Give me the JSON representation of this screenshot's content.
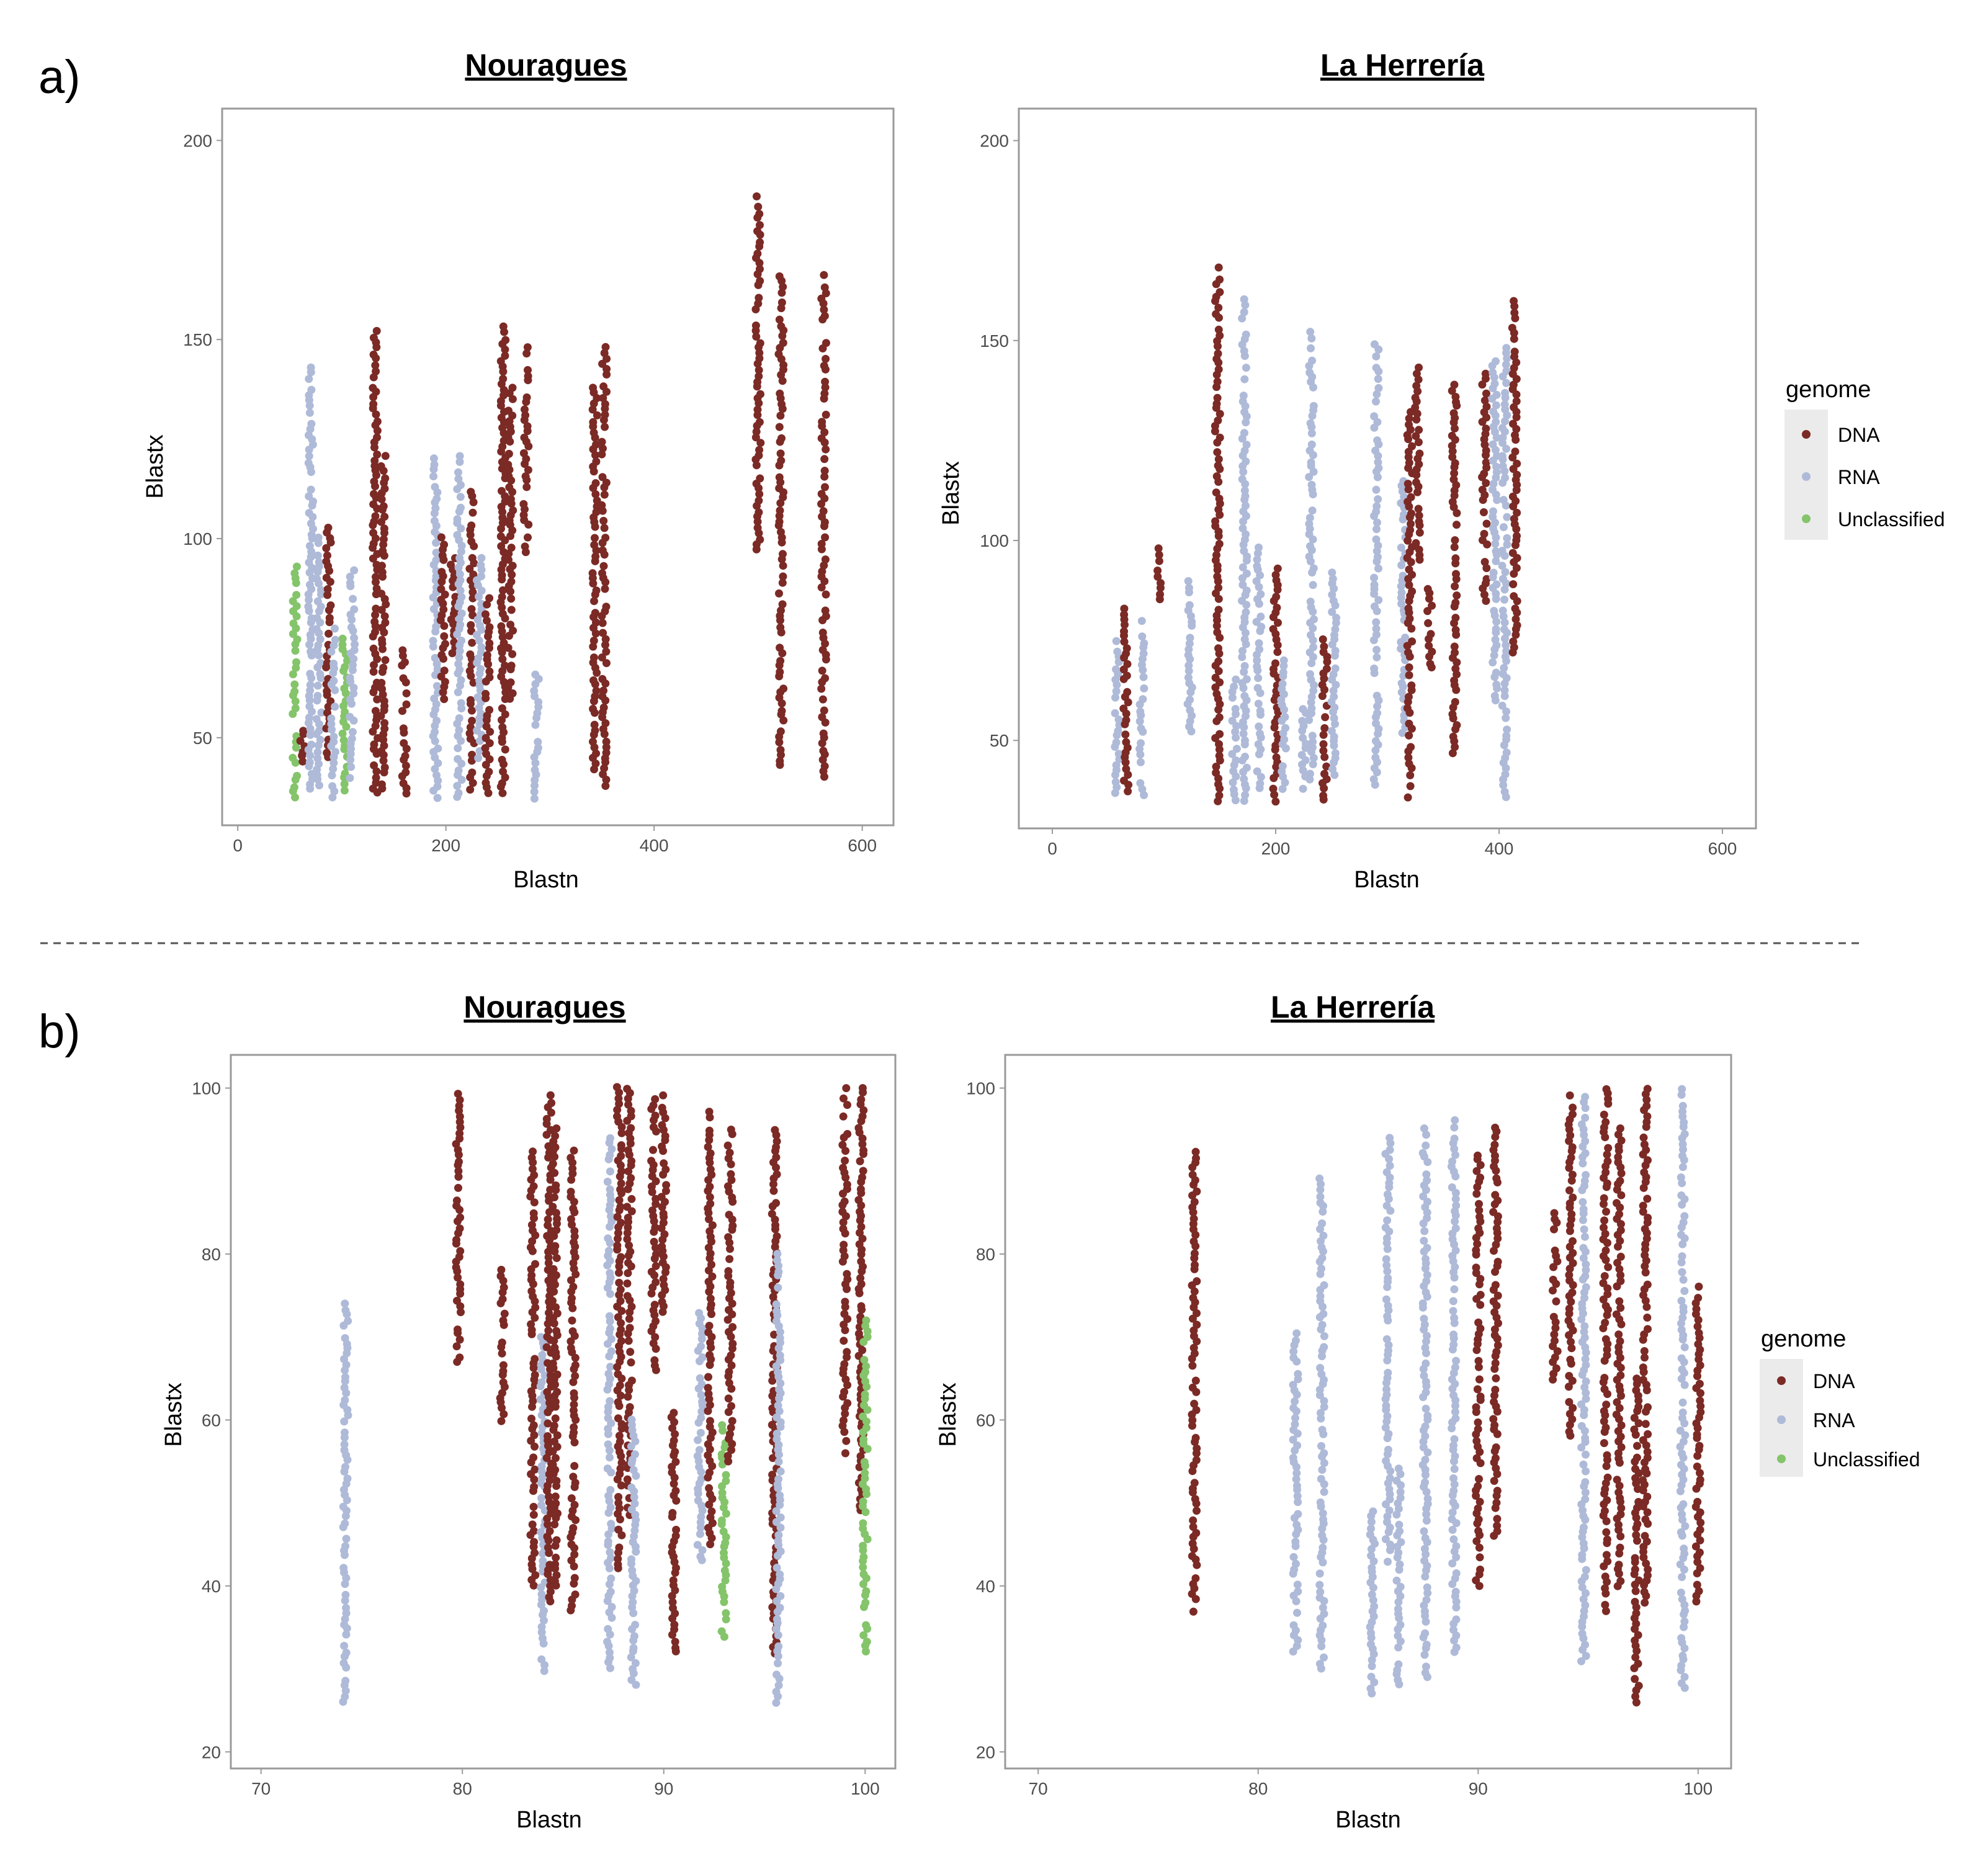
{
  "panels": [
    {
      "label": "a)"
    },
    {
      "label": "b)"
    }
  ],
  "colors": {
    "DNA": "#7b2a25",
    "RNA": "#aebad8",
    "Unclassified": "#84c46a",
    "frame": "#9a9a9a",
    "divider": "#555555"
  },
  "legends": [
    {
      "title": "genome",
      "items": [
        "DNA",
        "RNA",
        "Unclassified"
      ]
    },
    {
      "title": "genome",
      "items": [
        "DNA",
        "RNA",
        "Unclassified"
      ]
    }
  ],
  "chart_data": [
    {
      "type": "scatter",
      "panel": "a)",
      "title": "Nouragues",
      "xlabel": "Blastn",
      "ylabel": "Blastx",
      "xlim": [
        -15,
        630
      ],
      "ylim": [
        28,
        208
      ],
      "xticks": [
        0,
        200,
        400,
        600
      ],
      "yticks": [
        50,
        100,
        150,
        200
      ],
      "columns": [
        {
          "x": 55,
          "genome": "Unclassified",
          "y": [
            35,
            93
          ]
        },
        {
          "x": 62,
          "genome": "DNA",
          "y": [
            44,
            52
          ]
        },
        {
          "x": 70,
          "genome": "RNA",
          "y": [
            37,
            143
          ]
        },
        {
          "x": 78,
          "genome": "RNA",
          "y": [
            38,
            100
          ]
        },
        {
          "x": 87,
          "genome": "DNA",
          "y": [
            45,
            103
          ]
        },
        {
          "x": 92,
          "genome": "RNA",
          "y": [
            35,
            80
          ]
        },
        {
          "x": 103,
          "genome": "Unclassified",
          "y": [
            37,
            75
          ]
        },
        {
          "x": 110,
          "genome": "RNA",
          "y": [
            40,
            92
          ]
        },
        {
          "x": 132,
          "genome": "DNA",
          "y": [
            36,
            152
          ]
        },
        {
          "x": 140,
          "genome": "DNA",
          "y": [
            37,
            121
          ]
        },
        {
          "x": 160,
          "genome": "DNA",
          "y": [
            36,
            72
          ]
        },
        {
          "x": 190,
          "genome": "RNA",
          "y": [
            35,
            120
          ]
        },
        {
          "x": 197,
          "genome": "DNA",
          "y": [
            60,
            100
          ]
        },
        {
          "x": 207,
          "genome": "DNA",
          "y": [
            70,
            95
          ]
        },
        {
          "x": 213,
          "genome": "RNA",
          "y": [
            35,
            122
          ]
        },
        {
          "x": 225,
          "genome": "DNA",
          "y": [
            37,
            112
          ]
        },
        {
          "x": 232,
          "genome": "RNA",
          "y": [
            45,
            95
          ]
        },
        {
          "x": 240,
          "genome": "DNA",
          "y": [
            36,
            85
          ]
        },
        {
          "x": 255,
          "genome": "DNA",
          "y": [
            36,
            153
          ]
        },
        {
          "x": 262,
          "genome": "DNA",
          "y": [
            60,
            138
          ]
        },
        {
          "x": 277,
          "genome": "DNA",
          "y": [
            95,
            148
          ]
        },
        {
          "x": 287,
          "genome": "RNA",
          "y": [
            35,
            66
          ]
        },
        {
          "x": 343,
          "genome": "DNA",
          "y": [
            42,
            138
          ]
        },
        {
          "x": 352,
          "genome": "DNA",
          "y": [
            38,
            148
          ]
        },
        {
          "x": 500,
          "genome": "DNA",
          "y": [
            97,
            186
          ]
        },
        {
          "x": 522,
          "genome": "DNA",
          "y": [
            43,
            166
          ]
        },
        {
          "x": 563,
          "genome": "DNA",
          "y": [
            40,
            166
          ]
        }
      ]
    },
    {
      "type": "scatter",
      "panel": "a)",
      "title": "La Herrería",
      "xlabel": "Blastn",
      "ylabel": "Blastx",
      "xlim": [
        -30,
        630
      ],
      "ylim": [
        28,
        208
      ],
      "xticks": [
        0,
        200,
        400,
        600
      ],
      "yticks": [
        50,
        100,
        150,
        200
      ],
      "columns": [
        {
          "x": 58,
          "genome": "RNA",
          "y": [
            37,
            75
          ]
        },
        {
          "x": 66,
          "genome": "DNA",
          "y": [
            36,
            83
          ]
        },
        {
          "x": 80,
          "genome": "RNA",
          "y": [
            35,
            80
          ]
        },
        {
          "x": 95,
          "genome": "DNA",
          "y": [
            85,
            98
          ]
        },
        {
          "x": 123,
          "genome": "RNA",
          "y": [
            52,
            91
          ]
        },
        {
          "x": 148,
          "genome": "DNA",
          "y": [
            35,
            168
          ]
        },
        {
          "x": 163,
          "genome": "RNA",
          "y": [
            35,
            65
          ]
        },
        {
          "x": 172,
          "genome": "RNA",
          "y": [
            35,
            160
          ]
        },
        {
          "x": 185,
          "genome": "RNA",
          "y": [
            38,
            98
          ]
        },
        {
          "x": 200,
          "genome": "DNA",
          "y": [
            35,
            93
          ]
        },
        {
          "x": 207,
          "genome": "RNA",
          "y": [
            38,
            70
          ]
        },
        {
          "x": 225,
          "genome": "RNA",
          "y": [
            38,
            58
          ]
        },
        {
          "x": 232,
          "genome": "RNA",
          "y": [
            40,
            152
          ]
        },
        {
          "x": 244,
          "genome": "DNA",
          "y": [
            35,
            75
          ]
        },
        {
          "x": 252,
          "genome": "RNA",
          "y": [
            40,
            92
          ]
        },
        {
          "x": 290,
          "genome": "RNA",
          "y": [
            39,
            149
          ]
        },
        {
          "x": 314,
          "genome": "RNA",
          "y": [
            52,
            115
          ]
        },
        {
          "x": 320,
          "genome": "DNA",
          "y": [
            36,
            132
          ]
        },
        {
          "x": 327,
          "genome": "DNA",
          "y": [
            95,
            143
          ]
        },
        {
          "x": 338,
          "genome": "DNA",
          "y": [
            68,
            88
          ]
        },
        {
          "x": 360,
          "genome": "DNA",
          "y": [
            47,
            139
          ]
        },
        {
          "x": 387,
          "genome": "DNA",
          "y": [
            85,
            142
          ]
        },
        {
          "x": 396,
          "genome": "RNA",
          "y": [
            60,
            145
          ]
        },
        {
          "x": 405,
          "genome": "RNA",
          "y": [
            36,
            148
          ]
        },
        {
          "x": 414,
          "genome": "DNA",
          "y": [
            72,
            160
          ]
        }
      ]
    },
    {
      "type": "scatter",
      "panel": "b)",
      "title": "Nouragues",
      "xlabel": "Blastn",
      "ylabel": "Blastx",
      "xlim": [
        68.5,
        101.5
      ],
      "ylim": [
        18,
        104
      ],
      "xticks": [
        70,
        80,
        90,
        100
      ],
      "yticks": [
        20,
        40,
        60,
        80,
        100
      ],
      "columns": [
        {
          "x": 74.2,
          "genome": "RNA",
          "y": [
            26,
            74
          ]
        },
        {
          "x": 79.8,
          "genome": "DNA",
          "y": [
            67,
            100
          ]
        },
        {
          "x": 82.0,
          "genome": "DNA",
          "y": [
            60,
            78
          ]
        },
        {
          "x": 83.5,
          "genome": "DNA",
          "y": [
            40,
            93
          ]
        },
        {
          "x": 84.0,
          "genome": "RNA",
          "y": [
            29,
            70
          ]
        },
        {
          "x": 84.3,
          "genome": "DNA",
          "y": [
            38,
            99
          ]
        },
        {
          "x": 84.6,
          "genome": "DNA",
          "y": [
            40,
            95
          ]
        },
        {
          "x": 85.5,
          "genome": "DNA",
          "y": [
            37,
            93
          ]
        },
        {
          "x": 87.3,
          "genome": "RNA",
          "y": [
            30,
            94
          ]
        },
        {
          "x": 87.8,
          "genome": "DNA",
          "y": [
            42,
            100
          ]
        },
        {
          "x": 88.3,
          "genome": "DNA",
          "y": [
            48,
            100
          ]
        },
        {
          "x": 88.5,
          "genome": "RNA",
          "y": [
            28,
            60
          ]
        },
        {
          "x": 89.5,
          "genome": "DNA",
          "y": [
            66,
            100
          ]
        },
        {
          "x": 90.0,
          "genome": "DNA",
          "y": [
            73,
            99
          ]
        },
        {
          "x": 90.5,
          "genome": "DNA",
          "y": [
            32,
            61
          ]
        },
        {
          "x": 91.8,
          "genome": "RNA",
          "y": [
            43,
            73
          ]
        },
        {
          "x": 92.3,
          "genome": "DNA",
          "y": [
            45,
            97
          ]
        },
        {
          "x": 93.0,
          "genome": "Unclassified",
          "y": [
            34,
            60
          ]
        },
        {
          "x": 93.3,
          "genome": "DNA",
          "y": [
            55,
            95
          ]
        },
        {
          "x": 95.5,
          "genome": "DNA",
          "y": [
            32,
            95
          ]
        },
        {
          "x": 95.7,
          "genome": "RNA",
          "y": [
            26,
            80
          ]
        },
        {
          "x": 99.0,
          "genome": "DNA",
          "y": [
            56,
            100
          ]
        },
        {
          "x": 99.8,
          "genome": "DNA",
          "y": [
            49,
            100
          ]
        },
        {
          "x": 100.0,
          "genome": "Unclassified",
          "y": [
            32,
            72
          ]
        }
      ]
    },
    {
      "type": "scatter",
      "panel": "b)",
      "title": "La Herrería",
      "xlabel": "Blastn",
      "ylabel": "Blastx",
      "xlim": [
        68.5,
        101.5
      ],
      "ylim": [
        18,
        104
      ],
      "xticks": [
        70,
        80,
        90,
        100
      ],
      "yticks": [
        20,
        40,
        60,
        80,
        100
      ],
      "columns": [
        {
          "x": 77.1,
          "genome": "DNA",
          "y": [
            37,
            93
          ]
        },
        {
          "x": 81.7,
          "genome": "RNA",
          "y": [
            32,
            71
          ]
        },
        {
          "x": 82.9,
          "genome": "RNA",
          "y": [
            30,
            89
          ]
        },
        {
          "x": 85.2,
          "genome": "RNA",
          "y": [
            27,
            49
          ]
        },
        {
          "x": 85.9,
          "genome": "RNA",
          "y": [
            43,
            94
          ]
        },
        {
          "x": 86.4,
          "genome": "RNA",
          "y": [
            28,
            54
          ]
        },
        {
          "x": 87.6,
          "genome": "RNA",
          "y": [
            29,
            95
          ]
        },
        {
          "x": 88.9,
          "genome": "RNA",
          "y": [
            32,
            96
          ]
        },
        {
          "x": 90.0,
          "genome": "DNA",
          "y": [
            40,
            92
          ]
        },
        {
          "x": 90.8,
          "genome": "DNA",
          "y": [
            46,
            96
          ]
        },
        {
          "x": 93.5,
          "genome": "DNA",
          "y": [
            65,
            85
          ]
        },
        {
          "x": 94.2,
          "genome": "DNA",
          "y": [
            58,
            99
          ]
        },
        {
          "x": 94.8,
          "genome": "RNA",
          "y": [
            31,
            99
          ]
        },
        {
          "x": 95.8,
          "genome": "DNA",
          "y": [
            37,
            100
          ]
        },
        {
          "x": 96.4,
          "genome": "DNA",
          "y": [
            40,
            95
          ]
        },
        {
          "x": 97.2,
          "genome": "DNA",
          "y": [
            26,
            65
          ]
        },
        {
          "x": 97.6,
          "genome": "DNA",
          "y": [
            38,
            100
          ]
        },
        {
          "x": 99.3,
          "genome": "RNA",
          "y": [
            27,
            100
          ]
        },
        {
          "x": 100.0,
          "genome": "DNA",
          "y": [
            38,
            76
          ]
        }
      ]
    }
  ],
  "text": {
    "a_nouragues_title": "Nouragues",
    "a_herreria_title": "La Herrería",
    "b_nouragues_title": "Nouragues",
    "b_herreria_title": "La Herrería"
  }
}
